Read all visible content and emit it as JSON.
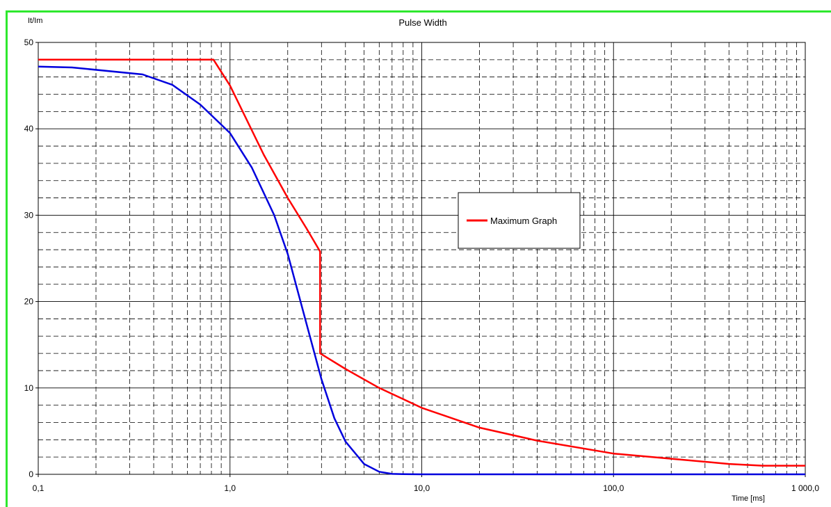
{
  "chart_data": {
    "type": "line",
    "title": "Pulse Width",
    "xlabel": "Time [ms]",
    "ylabel": "It/Im",
    "x_scale": "log",
    "xlim": [
      0.1,
      1000
    ],
    "ylim": [
      0,
      50
    ],
    "x_tick_labels": [
      "0,1",
      "1,0",
      "10,0",
      "100,0",
      "1 000,0"
    ],
    "y_tick_labels": [
      "0",
      "10",
      "20",
      "30",
      "40",
      "50"
    ],
    "grid": true,
    "legend_position": "center-right",
    "series": [
      {
        "name": "Maximum Graph",
        "color": "#ff0000",
        "in_legend": true,
        "points": [
          [
            0.1,
            48
          ],
          [
            0.82,
            48
          ],
          [
            1.0,
            45
          ],
          [
            1.5,
            37
          ],
          [
            2.0,
            32
          ],
          [
            2.5,
            28.5
          ],
          [
            2.95,
            25.8
          ],
          [
            2.95,
            14
          ],
          [
            4.0,
            12.2
          ],
          [
            6.0,
            10
          ],
          [
            10,
            7.7
          ],
          [
            20,
            5.4
          ],
          [
            40,
            3.9
          ],
          [
            100,
            2.4
          ],
          [
            200,
            1.8
          ],
          [
            400,
            1.2
          ],
          [
            600,
            1.0
          ],
          [
            1000,
            1.0
          ]
        ]
      },
      {
        "name": "",
        "color": "#0000dd",
        "in_legend": false,
        "points": [
          [
            0.1,
            47.2
          ],
          [
            0.15,
            47.1
          ],
          [
            0.35,
            46.3
          ],
          [
            0.5,
            45.1
          ],
          [
            0.7,
            42.8
          ],
          [
            1.0,
            39.5
          ],
          [
            1.3,
            35.5
          ],
          [
            1.7,
            30
          ],
          [
            2.0,
            25.5
          ],
          [
            2.5,
            17.5
          ],
          [
            3.0,
            11
          ],
          [
            3.5,
            6.5
          ],
          [
            4.0,
            3.8
          ],
          [
            5.0,
            1.2
          ],
          [
            6.0,
            0.3
          ],
          [
            7.0,
            0.05
          ],
          [
            8.0,
            0.02
          ],
          [
            10,
            0
          ],
          [
            1000,
            0
          ]
        ]
      }
    ]
  }
}
